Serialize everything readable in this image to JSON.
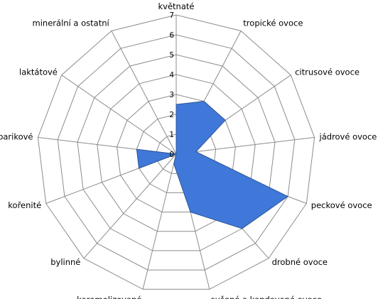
{
  "chart_data": {
    "type": "radar",
    "title": "",
    "categories": [
      "květnaté",
      "tropické ovoce",
      "citrusové ovoce",
      "jádrové ovoce",
      "peckové ovoce",
      "drobné ovoce",
      "sušené a kandované ovoce",
      "karamelizované",
      "bylinné",
      "kořenité",
      "barikové",
      "laktátové",
      "minerální a ostatní"
    ],
    "series": [
      {
        "values": [
          2.5,
          3,
          3,
          1,
          6,
          5,
          3,
          0.5,
          0,
          2,
          2,
          0,
          0
        ]
      }
    ],
    "rlim": [
      0,
      7
    ],
    "ticks": [
      "0",
      "1",
      "2",
      "3",
      "4",
      "5",
      "6",
      "7"
    ],
    "grid": true,
    "legend": "none",
    "colors": {
      "fill": "#3f78d8",
      "stroke": "#2f5597",
      "grid": "#8c8c8c"
    }
  }
}
